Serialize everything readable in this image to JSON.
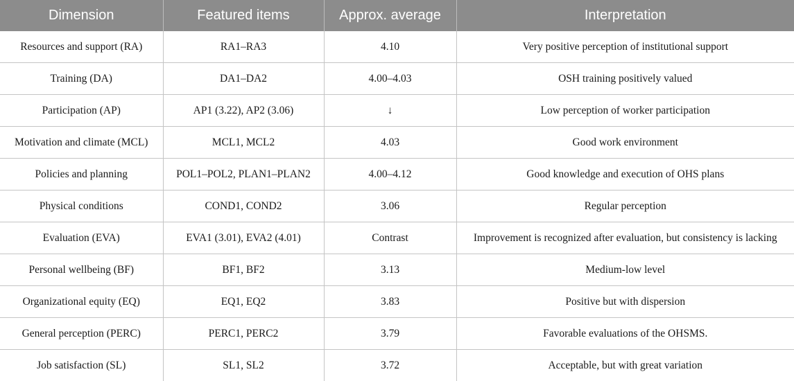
{
  "headers": [
    "Dimension",
    "Featured items",
    "Approx. average",
    "Interpretation"
  ],
  "rows": [
    [
      "Resources and support (RA)",
      "RA1–RA3",
      "4.10",
      "Very positive perception of institutional support"
    ],
    [
      "Training (DA)",
      "DA1–DA2",
      "4.00–4.03",
      "OSH training positively valued"
    ],
    [
      "Participation (AP)",
      "AP1 (3.22), AP2 (3.06)",
      "↓",
      "Low perception of worker participation"
    ],
    [
      "Motivation and climate (MCL)",
      "MCL1, MCL2",
      "4.03",
      "Good work environment"
    ],
    [
      "Policies and planning",
      "POL1–POL2, PLAN1–PLAN2",
      "4.00–4.12",
      "Good knowledge and execution of OHS plans"
    ],
    [
      "Physical conditions",
      "COND1, COND2",
      "3.06",
      "Regular perception"
    ],
    [
      "Evaluation (EVA)",
      "EVA1 (3.01), EVA2 (4.01)",
      "Contrast",
      "Improvement is recognized after evaluation, but consistency is lacking"
    ],
    [
      "Personal wellbeing (BF)",
      "BF1, BF2",
      "3.13",
      "Medium-low level"
    ],
    [
      "Organizational equity (EQ)",
      "EQ1, EQ2",
      "3.83",
      "Positive but with dispersion"
    ],
    [
      "General perception (PERC)",
      "PERC1, PERC2",
      "3.79",
      "Favorable evaluations of the OHSMS."
    ],
    [
      "Job satisfaction (SL)",
      "SL1, SL2",
      "3.72",
      "Acceptable, but with great variation"
    ]
  ]
}
